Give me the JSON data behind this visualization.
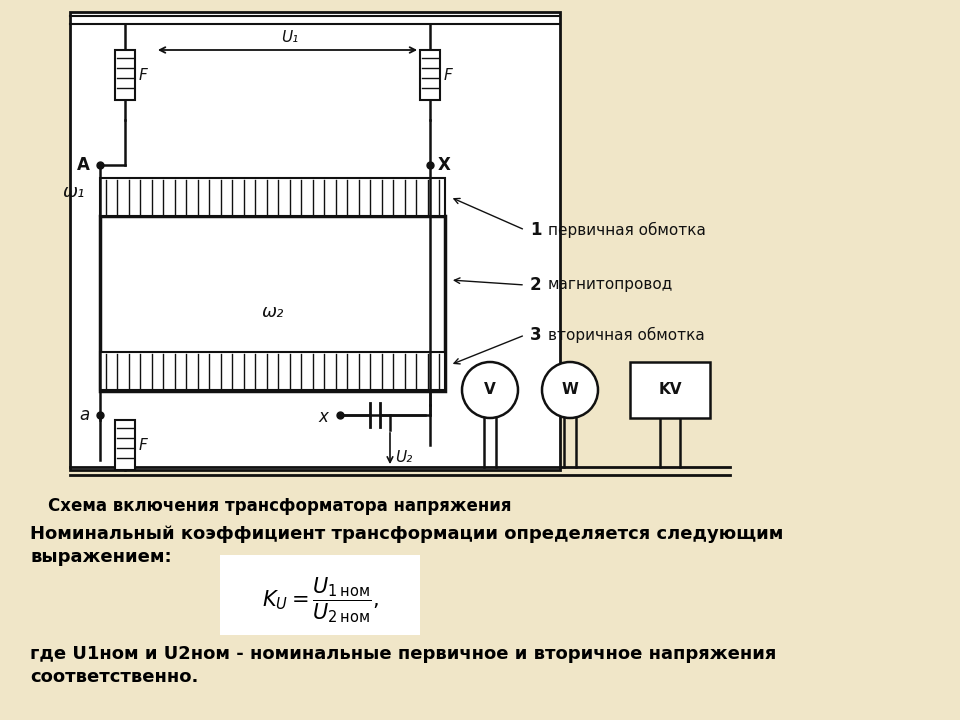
{
  "background_color": "#f0e6c8",
  "diagram_bg": "#ffffff",
  "title": "Схема включения трансформатора напряжения",
  "title_fontsize": 12,
  "text1_line1": "Номинальный коэффициент трансформации определяется следующим",
  "text1_line2": "выражением:",
  "text2_line1": "где U1ном и U2ном - номинальные первичное и вторичное напряжения",
  "text2_line2": "соответственно.",
  "label1": "первичная обмотка",
  "label2": "магнитопровод",
  "label3": "вторичная обмотка",
  "label_A": "A",
  "label_X_top": "X",
  "label_X_bot": "x",
  "label_a": "a",
  "label_F": "F",
  "label_w1": "ω₁",
  "label_w2": "ω₂",
  "label_U1": "U₁",
  "label_U2": "U₂",
  "label_V": "V",
  "label_W": "W",
  "label_KV": "KV",
  "num1": "1",
  "num2": "2",
  "num3": "3",
  "text_fontsize": 13,
  "label_fontsize": 11,
  "line_color": "#111111"
}
